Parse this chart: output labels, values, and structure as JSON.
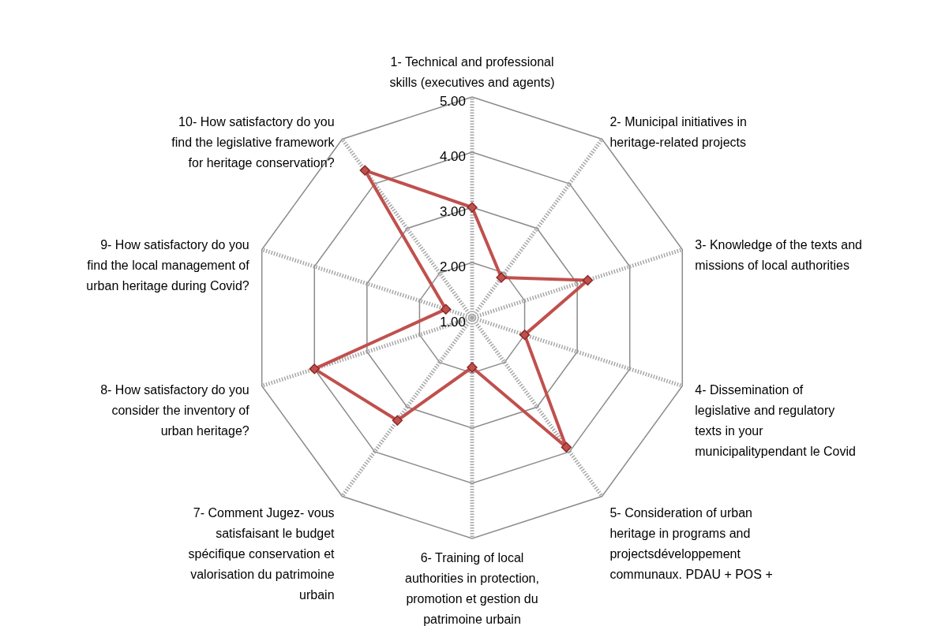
{
  "chart_data": {
    "type": "radar",
    "categories": [
      "1- Technical and professional skills (executives and agents)",
      "2- Municipal initiatives in heritage-related projects",
      "3- Knowledge of the texts and missions of local authorities",
      "4- Dissemination of legislative and regulatory texts in your municipalitypendant le Covid",
      "5- Consideration of urban heritage in programs and projectsdéveloppement communaux. PDAU + POS +",
      "6- Training of local authorities in protection, promotion et gestion du patrimoine urbain",
      "7- Comment Jugez- vous satisfaisant le budget spécifique conservation et valorisation du patrimoine urbain",
      "8- How satisfactory do you consider the inventory of urban heritage?",
      "9- How satisfactory do you find the local management of urban heritage during Covid?",
      "10- How satisfactory do you find the legislative framework for heritage conservation?"
    ],
    "series": [
      {
        "color": "#c0504d",
        "values": [
          3.0,
          1.9,
          3.2,
          2.0,
          3.9,
          1.9,
          3.3,
          4.0,
          1.5,
          4.3
        ]
      }
    ],
    "ylim": [
      1,
      5
    ],
    "yticks": [
      {
        "value": 1,
        "label": "1.00"
      },
      {
        "value": 2,
        "label": "2.00"
      },
      {
        "value": 3,
        "label": "3.00"
      },
      {
        "value": 4,
        "label": "4.00"
      },
      {
        "value": 5,
        "label": "5.00"
      }
    ],
    "grid": true,
    "marker": "diamond"
  }
}
